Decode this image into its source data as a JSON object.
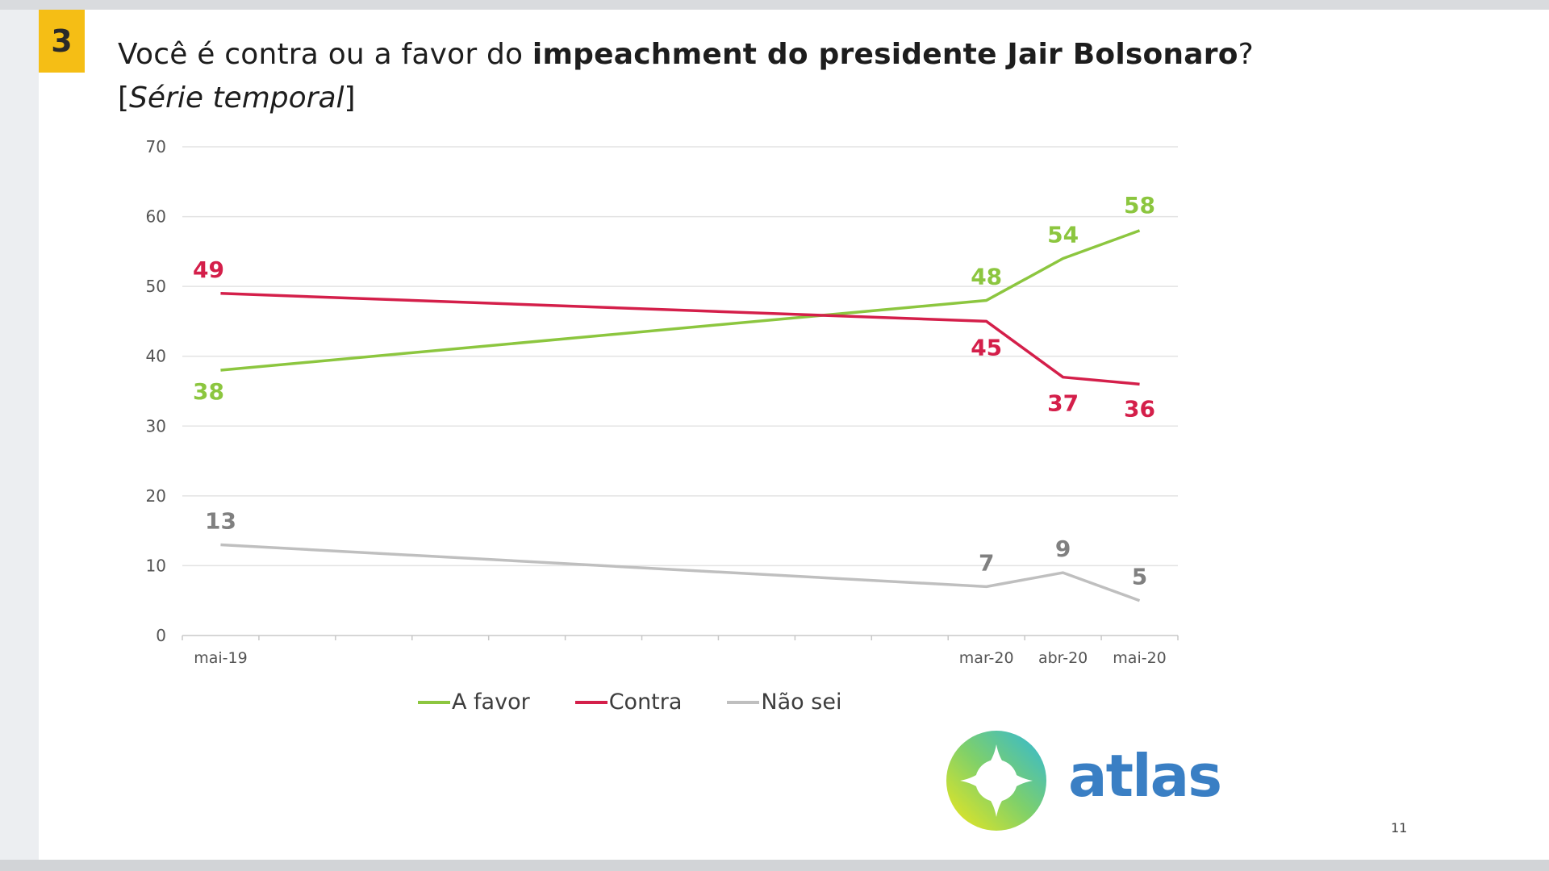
{
  "slide": {
    "number": "3",
    "title_normal": "Você é contra ou a favor do ",
    "title_bold": "impeachment do presidente Jair Bolsonaro",
    "title_end": "?",
    "subtitle_open": "[",
    "subtitle_italic": "Série temporal",
    "subtitle_close": "]",
    "page_number": "11"
  },
  "logo": {
    "text": "atlas",
    "text_color": "#3a7fc4"
  },
  "chart_data": {
    "type": "line",
    "title": "",
    "xlabel": "",
    "ylabel": "",
    "ylim": [
      0,
      70
    ],
    "yticks": [
      "0",
      "10",
      "20",
      "30",
      "40",
      "50",
      "60",
      "70"
    ],
    "grid": true,
    "legend_position": "bottom",
    "x_categories": [
      "mai-19",
      "",
      "",
      "",
      "",
      "",
      "",
      "",
      "",
      "",
      "mar-20",
      "abr-20",
      "mai-20"
    ],
    "x_tick_labels": [
      "mai-19",
      "mar-20",
      "abr-20",
      "mai-20"
    ],
    "series": [
      {
        "name": "A favor",
        "color": "#8cc63f",
        "points": [
          {
            "x": "mai-19",
            "y": 38
          },
          {
            "x": "mar-20",
            "y": 48
          },
          {
            "x": "abr-20",
            "y": 54
          },
          {
            "x": "mai-20",
            "y": 58
          }
        ],
        "labels": [
          "38",
          "48",
          "54",
          "58"
        ]
      },
      {
        "name": "Contra",
        "color": "#d41f4a",
        "points": [
          {
            "x": "mai-19",
            "y": 49
          },
          {
            "x": "mar-20",
            "y": 45
          },
          {
            "x": "abr-20",
            "y": 37
          },
          {
            "x": "mai-20",
            "y": 36
          }
        ],
        "labels": [
          "49",
          "45",
          "37",
          "36"
        ]
      },
      {
        "name": "Não sei",
        "color": "#bfbfbf",
        "points": [
          {
            "x": "mai-19",
            "y": 13
          },
          {
            "x": "mar-20",
            "y": 7
          },
          {
            "x": "abr-20",
            "y": 9
          },
          {
            "x": "mai-20",
            "y": 5
          }
        ],
        "labels": [
          "13",
          "7",
          "9",
          "5"
        ]
      }
    ]
  }
}
